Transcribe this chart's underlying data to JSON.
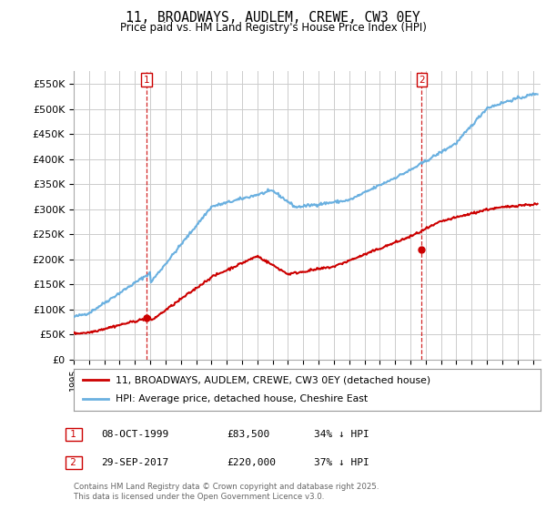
{
  "title": "11, BROADWAYS, AUDLEM, CREWE, CW3 0EY",
  "subtitle": "Price paid vs. HM Land Registry's House Price Index (HPI)",
  "ylabel_ticks": [
    "£0",
    "£50K",
    "£100K",
    "£150K",
    "£200K",
    "£250K",
    "£300K",
    "£350K",
    "£400K",
    "£450K",
    "£500K",
    "£550K"
  ],
  "ytick_values": [
    0,
    50000,
    100000,
    150000,
    200000,
    250000,
    300000,
    350000,
    400000,
    450000,
    500000,
    550000
  ],
  "ylim": [
    0,
    575000
  ],
  "hpi_color": "#6ab0e0",
  "price_color": "#cc0000",
  "marker1_date": 1999.77,
  "marker1_price": 83500,
  "marker1_label": "1",
  "marker2_date": 2017.74,
  "marker2_price": 220000,
  "marker2_label": "2",
  "legend_line1": "11, BROADWAYS, AUDLEM, CREWE, CW3 0EY (detached house)",
  "legend_line2": "HPI: Average price, detached house, Cheshire East",
  "footnote1": "Contains HM Land Registry data © Crown copyright and database right 2025.",
  "footnote2": "This data is licensed under the Open Government Licence v3.0.",
  "xmin": 1995,
  "xmax": 2025.5,
  "background_color": "#ffffff",
  "grid_color": "#cccccc"
}
